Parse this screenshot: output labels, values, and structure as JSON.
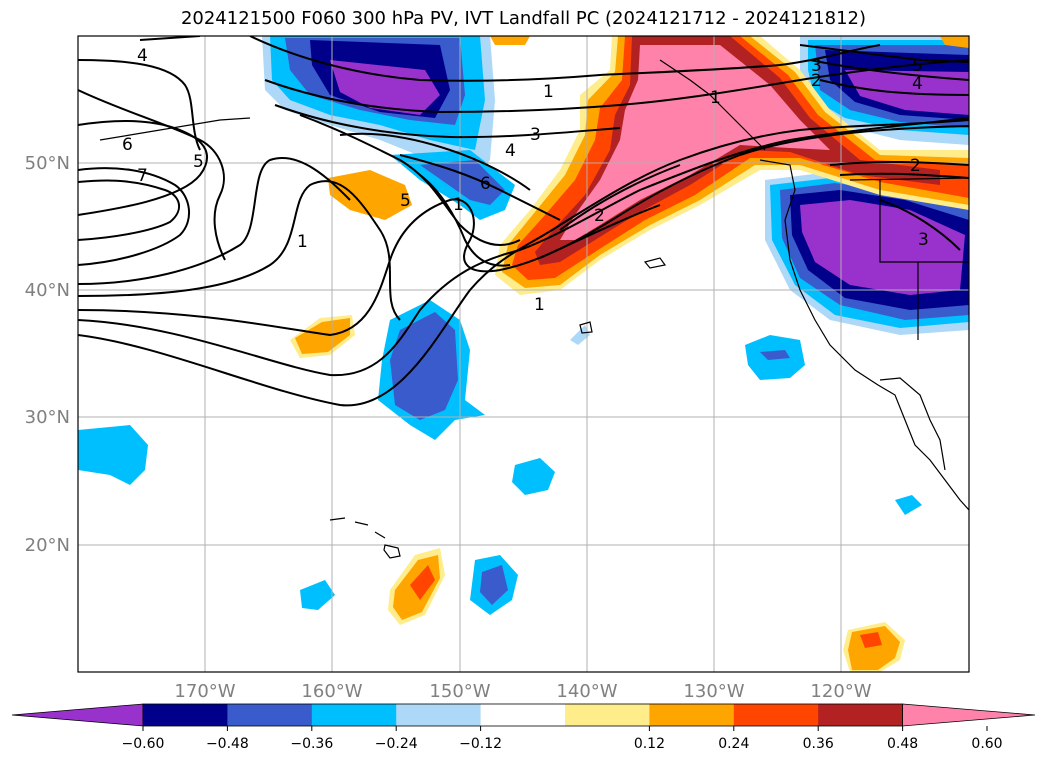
{
  "title": "2024121500 F060 300 hPa PV, IVT Landfall PC (2024121712 - 2024121812)",
  "colors": {
    "neg": [
      "#9932cc",
      "#00008b",
      "#3a5bcc",
      "#00bfff",
      "#add8f7"
    ],
    "zero": "#ffffff",
    "pos": [
      "#ffec8b",
      "#ffa500",
      "#ff4500",
      "#b22222",
      "#ff82ab"
    ]
  },
  "map": {
    "lon_labels": [
      "170°W",
      "160°W",
      "150°W",
      "140°W",
      "130°W",
      "120°W"
    ],
    "lat_labels": [
      "50°N",
      "40°N",
      "30°N",
      "20°N"
    ]
  },
  "colorbar": {
    "ticks": [
      "−0.60",
      "−0.48",
      "−0.36",
      "−0.24",
      "−0.12",
      "0.12",
      "0.24",
      "0.36",
      "0.48",
      "0.60"
    ]
  },
  "contour_labels": [
    {
      "text": "4",
      "icon": "contour-label"
    },
    {
      "text": "6"
    },
    {
      "text": "7"
    },
    {
      "text": "5"
    },
    {
      "text": "1"
    },
    {
      "text": "1"
    },
    {
      "text": "3"
    },
    {
      "text": "4"
    },
    {
      "text": "6"
    },
    {
      "text": "5"
    },
    {
      "text": "1"
    },
    {
      "text": "2"
    },
    {
      "text": "1"
    },
    {
      "text": "3"
    },
    {
      "text": "2"
    },
    {
      "text": "5"
    },
    {
      "text": "4"
    },
    {
      "text": "2"
    },
    {
      "text": "3"
    },
    {
      "text": "1"
    }
  ]
}
